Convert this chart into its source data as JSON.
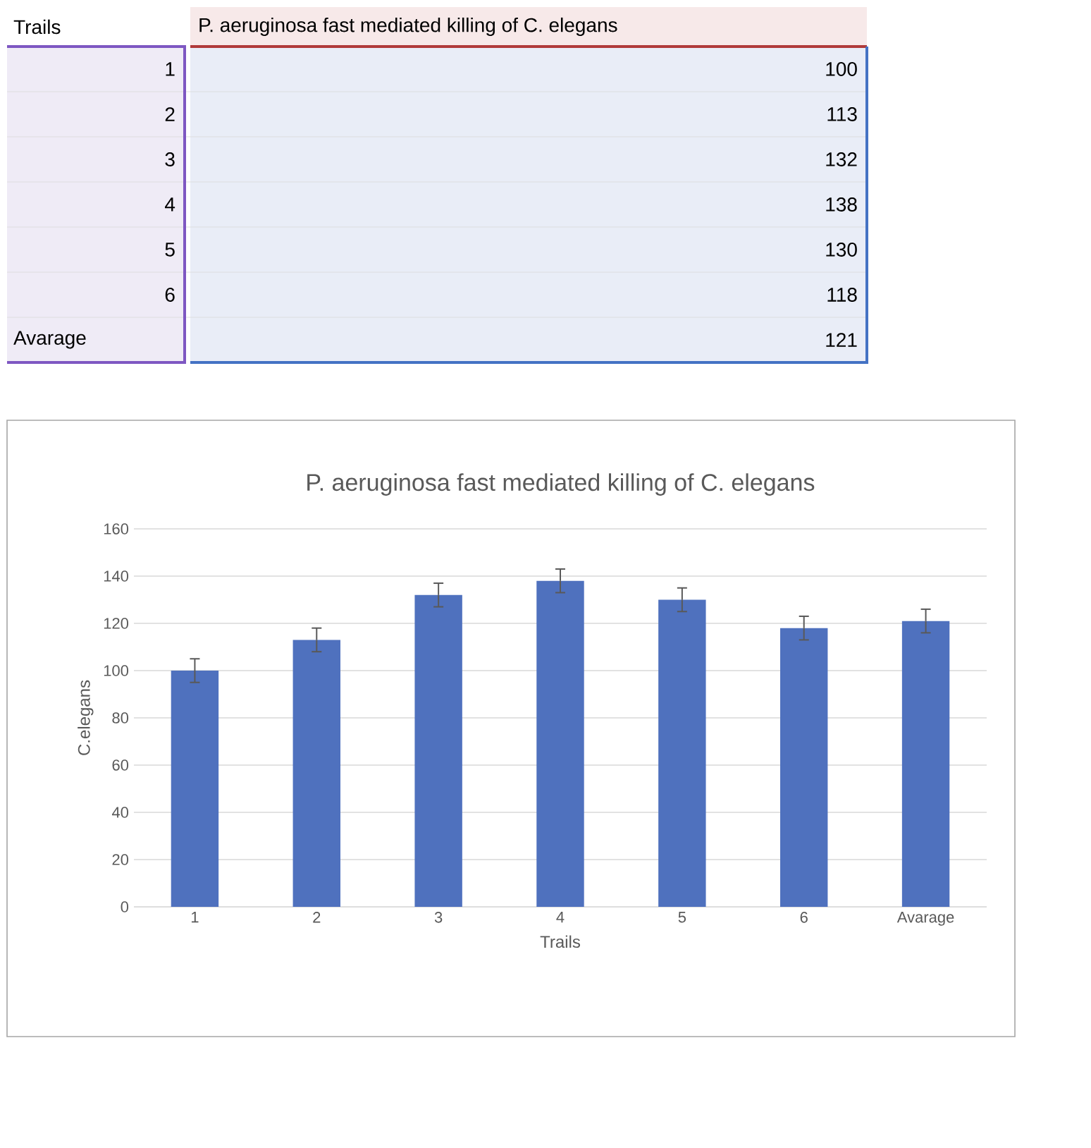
{
  "chart_data": {
    "type": "bar",
    "title": "P. aeruginosa fast mediated killing of C. elegans",
    "xlabel": "Trails",
    "ylabel": "C.elegans",
    "categories": [
      "1",
      "2",
      "3",
      "4",
      "5",
      "6",
      "Avarage"
    ],
    "values": [
      100,
      113,
      132,
      138,
      130,
      118,
      121
    ],
    "errors": [
      5,
      5,
      5,
      5,
      5,
      5,
      5
    ],
    "color": "#4f71be",
    "ylim": [
      0,
      160
    ],
    "yticks": [
      0,
      20,
      40,
      60,
      80,
      100,
      120,
      140,
      160
    ],
    "grid": "y",
    "annotations": [
      "100",
      "113",
      "132",
      "138",
      "130",
      "118",
      "121"
    ]
  }
}
